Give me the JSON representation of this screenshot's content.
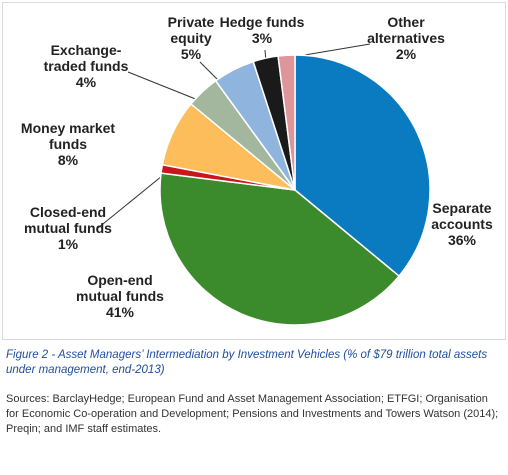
{
  "chart_data": {
    "type": "pie",
    "categories": [
      "Separate accounts",
      "Open-end mutual funds",
      "Closed-end mutual funds",
      "Money market funds",
      "Exchange-traded funds",
      "Private equity",
      "Hedge funds",
      "Other alternatives"
    ],
    "values": [
      36,
      41,
      1,
      8,
      4,
      5,
      3,
      2
    ],
    "value_labels": [
      "36%",
      "41%",
      "1%",
      "8%",
      "4%",
      "5%",
      "3%",
      "2%"
    ],
    "colors": [
      "#0b7bc1",
      "#3b8a2c",
      "#c8161d",
      "#fdbd5b",
      "#a3b79f",
      "#8fb5de",
      "#1a1a1a",
      "#e0959b"
    ],
    "caption": "Figure 2 - Asset Managers’ Intermediation by Investment Vehicles (% of $79 trillion total assets under management, end-2013)",
    "sources": "Sources: BarclayHedge; European Fund and Asset Management Association; ETFGI; Organisation for Economic Co-operation and Development; Pensions and Investments and Towers Watson (2014); Preqin; and IMF staff estimates."
  }
}
